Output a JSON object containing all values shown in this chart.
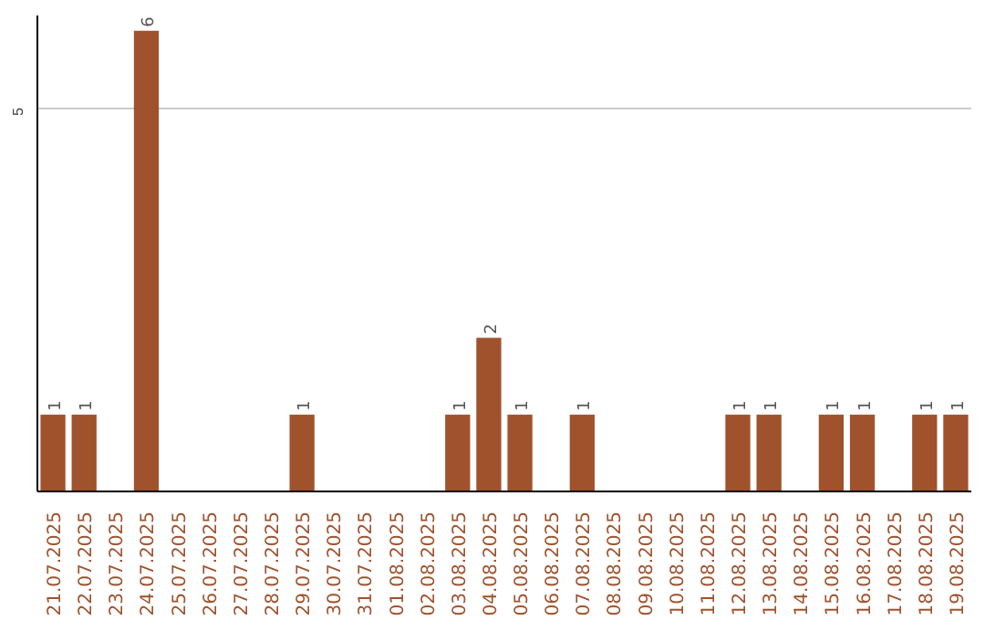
{
  "chart_data": {
    "type": "bar",
    "categories": [
      "21.07.2025",
      "22.07.2025",
      "23.07.2025",
      "24.07.2025",
      "25.07.2025",
      "26.07.2025",
      "27.07.2025",
      "28.07.2025",
      "29.07.2025",
      "30.07.2025",
      "31.07.2025",
      "01.08.2025",
      "02.08.2025",
      "03.08.2025",
      "04.08.2025",
      "05.08.2025",
      "06.08.2025",
      "07.08.2025",
      "08.08.2025",
      "09.08.2025",
      "10.08.2025",
      "11.08.2025",
      "12.08.2025",
      "13.08.2025",
      "14.08.2025",
      "15.08.2025",
      "16.08.2025",
      "17.08.2025",
      "18.08.2025",
      "19.08.2025"
    ],
    "values": [
      1,
      1,
      0,
      6,
      0,
      0,
      0,
      0,
      1,
      0,
      0,
      0,
      0,
      1,
      2,
      1,
      0,
      1,
      0,
      0,
      0,
      0,
      1,
      1,
      0,
      1,
      1,
      0,
      1,
      1
    ],
    "value_labels": [
      "1",
      "1",
      null,
      "6",
      null,
      null,
      null,
      null,
      "1",
      null,
      null,
      null,
      null,
      "1",
      "2",
      "1",
      null,
      "1",
      null,
      null,
      null,
      null,
      "1",
      "1",
      null,
      "1",
      "1",
      null,
      "1",
      "1"
    ],
    "color": "#a0522d",
    "ylim": [
      0,
      6.2
    ],
    "yticks": [
      5
    ],
    "grid": "y"
  }
}
